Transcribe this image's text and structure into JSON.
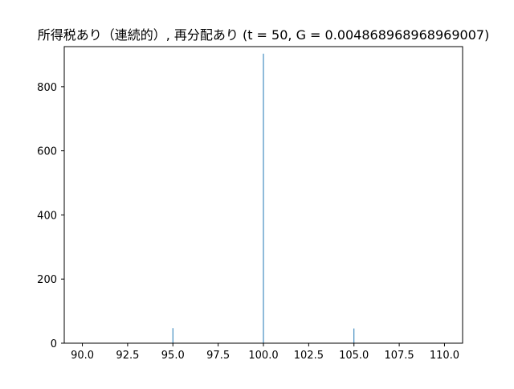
{
  "chart_data": {
    "type": "bar",
    "title": "所得税あり（連続的）, 再分配あり (t = 50, G = 0.004868968968969007)",
    "xlabel": "",
    "ylabel": "",
    "x": [
      95,
      100,
      105
    ],
    "values": [
      47,
      903,
      46
    ],
    "xlim": [
      89.0,
      111.0
    ],
    "ylim": [
      0,
      925
    ],
    "xticks": [
      "90.0",
      "92.5",
      "95.0",
      "97.5",
      "100.0",
      "102.5",
      "105.0",
      "107.5",
      "110.0"
    ],
    "xtick_values": [
      90.0,
      92.5,
      95.0,
      97.5,
      100.0,
      102.5,
      105.0,
      107.5,
      110.0
    ],
    "yticks": [
      "0",
      "200",
      "400",
      "600",
      "800"
    ],
    "ytick_values": [
      0,
      200,
      400,
      600,
      800
    ],
    "grid": false,
    "bar_color": "#1f77b4"
  }
}
